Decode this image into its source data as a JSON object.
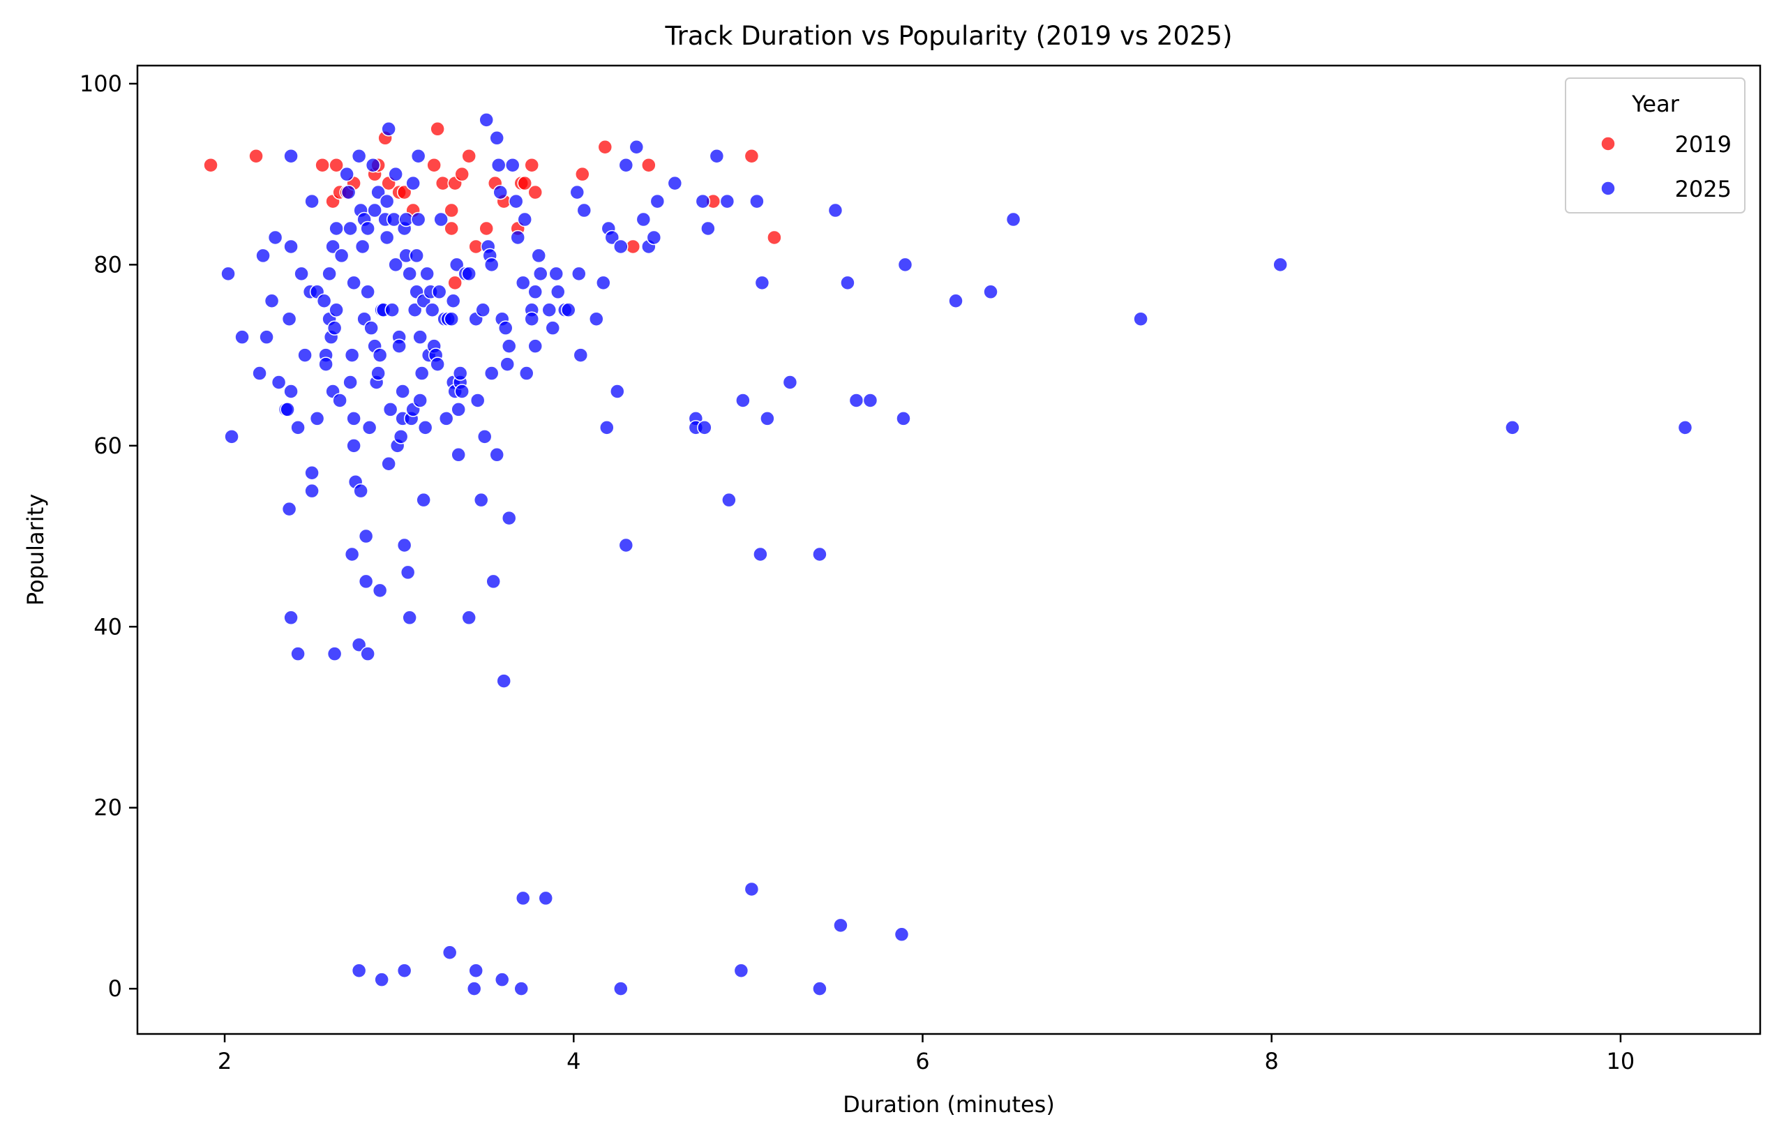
{
  "chart_data": {
    "type": "scatter",
    "title": "Track Duration vs Popularity (2019 vs 2025)",
    "xlabel": "Duration (minutes)",
    "ylabel": "Popularity",
    "xlim": [
      1.5,
      10.8
    ],
    "ylim": [
      -5,
      102
    ],
    "xticks": [
      2,
      4,
      6,
      8,
      10
    ],
    "yticks": [
      0,
      20,
      40,
      60,
      80,
      100
    ],
    "grid": false,
    "legend": {
      "title": "Year",
      "placement": "top-right"
    },
    "series": [
      {
        "name": "2019",
        "color": "#ff0000",
        "points": [
          [
            1.92,
            91
          ],
          [
            2.18,
            92
          ],
          [
            2.56,
            91
          ],
          [
            2.64,
            91
          ],
          [
            2.62,
            87
          ],
          [
            2.66,
            88
          ],
          [
            2.7,
            88
          ],
          [
            2.74,
            89
          ],
          [
            2.86,
            90
          ],
          [
            2.88,
            91
          ],
          [
            2.92,
            94
          ],
          [
            2.94,
            89
          ],
          [
            3.0,
            88
          ],
          [
            3.03,
            88
          ],
          [
            3.08,
            86
          ],
          [
            3.2,
            91
          ],
          [
            3.22,
            95
          ],
          [
            3.25,
            89
          ],
          [
            3.3,
            86
          ],
          [
            3.3,
            84
          ],
          [
            3.32,
            89
          ],
          [
            3.36,
            90
          ],
          [
            3.4,
            92
          ],
          [
            3.44,
            82
          ],
          [
            3.5,
            84
          ],
          [
            3.55,
            89
          ],
          [
            3.6,
            87
          ],
          [
            3.68,
            84
          ],
          [
            3.7,
            89
          ],
          [
            3.72,
            89
          ],
          [
            3.76,
            91
          ],
          [
            3.78,
            88
          ],
          [
            3.32,
            78
          ],
          [
            4.05,
            90
          ],
          [
            4.18,
            93
          ],
          [
            4.34,
            82
          ],
          [
            4.43,
            91
          ],
          [
            4.8,
            87
          ],
          [
            5.02,
            92
          ],
          [
            5.15,
            83
          ]
        ]
      },
      {
        "name": "2025",
        "color": "#0000ff",
        "points": [
          [
            2.02,
            79
          ],
          [
            2.04,
            61
          ],
          [
            2.1,
            72
          ],
          [
            2.2,
            68
          ],
          [
            2.22,
            81
          ],
          [
            2.24,
            72
          ],
          [
            2.27,
            76
          ],
          [
            2.29,
            83
          ],
          [
            2.31,
            67
          ],
          [
            2.35,
            64
          ],
          [
            2.36,
            64
          ],
          [
            2.37,
            74
          ],
          [
            2.38,
            82
          ],
          [
            2.38,
            92
          ],
          [
            2.38,
            66
          ],
          [
            2.42,
            62
          ],
          [
            2.44,
            79
          ],
          [
            2.46,
            70
          ],
          [
            2.49,
            77
          ],
          [
            2.5,
            87
          ],
          [
            2.5,
            55
          ],
          [
            2.5,
            57
          ],
          [
            2.53,
            77
          ],
          [
            2.53,
            63
          ],
          [
            2.57,
            76
          ],
          [
            2.58,
            70
          ],
          [
            2.58,
            69
          ],
          [
            2.6,
            74
          ],
          [
            2.6,
            79
          ],
          [
            2.61,
            72
          ],
          [
            2.62,
            82
          ],
          [
            2.62,
            66
          ],
          [
            2.63,
            73
          ],
          [
            2.64,
            84
          ],
          [
            2.64,
            75
          ],
          [
            2.66,
            65
          ],
          [
            2.67,
            81
          ],
          [
            2.7,
            90
          ],
          [
            2.71,
            88
          ],
          [
            2.72,
            67
          ],
          [
            2.72,
            84
          ],
          [
            2.73,
            70
          ],
          [
            2.74,
            63
          ],
          [
            2.74,
            60
          ],
          [
            2.74,
            78
          ],
          [
            2.75,
            56
          ],
          [
            2.77,
            92
          ],
          [
            2.78,
            86
          ],
          [
            2.78,
            55
          ],
          [
            2.79,
            82
          ],
          [
            2.8,
            74
          ],
          [
            2.8,
            85
          ],
          [
            2.81,
            50
          ],
          [
            2.82,
            77
          ],
          [
            2.82,
            84
          ],
          [
            2.83,
            62
          ],
          [
            2.84,
            73
          ],
          [
            2.85,
            91
          ],
          [
            2.86,
            86
          ],
          [
            2.86,
            71
          ],
          [
            2.87,
            67
          ],
          [
            2.88,
            68
          ],
          [
            2.88,
            88
          ],
          [
            2.89,
            70
          ],
          [
            2.9,
            75
          ],
          [
            2.91,
            75
          ],
          [
            2.92,
            85
          ],
          [
            2.93,
            87
          ],
          [
            2.93,
            83
          ],
          [
            2.94,
            95
          ],
          [
            2.94,
            58
          ],
          [
            2.95,
            64
          ],
          [
            2.96,
            75
          ],
          [
            2.97,
            85
          ],
          [
            2.98,
            90
          ],
          [
            2.98,
            80
          ],
          [
            2.99,
            60
          ],
          [
            3.0,
            72
          ],
          [
            3.0,
            71
          ],
          [
            3.01,
            61
          ],
          [
            3.02,
            63
          ],
          [
            3.02,
            66
          ],
          [
            3.03,
            84
          ],
          [
            3.03,
            49
          ],
          [
            3.04,
            85
          ],
          [
            3.04,
            81
          ],
          [
            3.05,
            46
          ],
          [
            3.06,
            79
          ],
          [
            3.07,
            63
          ],
          [
            3.08,
            64
          ],
          [
            3.08,
            89
          ],
          [
            3.09,
            75
          ],
          [
            3.1,
            77
          ],
          [
            3.1,
            81
          ],
          [
            3.11,
            92
          ],
          [
            3.11,
            85
          ],
          [
            3.12,
            72
          ],
          [
            3.12,
            65
          ],
          [
            3.13,
            68
          ],
          [
            3.14,
            76
          ],
          [
            3.15,
            62
          ],
          [
            3.16,
            79
          ],
          [
            3.17,
            70
          ],
          [
            3.18,
            77
          ],
          [
            3.19,
            75
          ],
          [
            3.2,
            71
          ],
          [
            3.21,
            70
          ],
          [
            3.22,
            69
          ],
          [
            3.23,
            77
          ],
          [
            3.24,
            85
          ],
          [
            3.26,
            74
          ],
          [
            3.27,
            63
          ],
          [
            3.28,
            74
          ],
          [
            3.3,
            74
          ],
          [
            3.31,
            76
          ],
          [
            3.31,
            67
          ],
          [
            3.32,
            66
          ],
          [
            3.33,
            80
          ],
          [
            3.34,
            64
          ],
          [
            3.35,
            67
          ],
          [
            3.35,
            68
          ],
          [
            3.36,
            66
          ],
          [
            3.38,
            79
          ],
          [
            3.4,
            79
          ],
          [
            3.44,
            74
          ],
          [
            3.45,
            65
          ],
          [
            3.47,
            54
          ],
          [
            3.48,
            75
          ],
          [
            3.49,
            61
          ],
          [
            3.5,
            96
          ],
          [
            3.51,
            82
          ],
          [
            3.52,
            81
          ],
          [
            3.53,
            80
          ],
          [
            3.53,
            68
          ],
          [
            3.54,
            45
          ],
          [
            3.56,
            94
          ],
          [
            3.56,
            59
          ],
          [
            3.57,
            91
          ],
          [
            3.58,
            88
          ],
          [
            3.59,
            74
          ],
          [
            3.6,
            34
          ],
          [
            3.61,
            73
          ],
          [
            3.62,
            69
          ],
          [
            3.63,
            71
          ],
          [
            3.63,
            52
          ],
          [
            3.65,
            91
          ],
          [
            3.67,
            87
          ],
          [
            3.68,
            83
          ],
          [
            3.71,
            78
          ],
          [
            3.72,
            85
          ],
          [
            3.73,
            68
          ],
          [
            3.76,
            75
          ],
          [
            3.76,
            74
          ],
          [
            3.78,
            71
          ],
          [
            3.78,
            77
          ],
          [
            3.8,
            81
          ],
          [
            3.81,
            79
          ],
          [
            3.86,
            75
          ],
          [
            3.88,
            73
          ],
          [
            3.9,
            79
          ],
          [
            3.91,
            77
          ],
          [
            3.95,
            75
          ],
          [
            3.97,
            75
          ],
          [
            4.02,
            88
          ],
          [
            4.03,
            79
          ],
          [
            4.04,
            70
          ],
          [
            4.06,
            86
          ],
          [
            4.13,
            74
          ],
          [
            4.17,
            78
          ],
          [
            4.19,
            62
          ],
          [
            4.2,
            84
          ],
          [
            4.22,
            83
          ],
          [
            4.25,
            66
          ],
          [
            4.27,
            82
          ],
          [
            4.3,
            91
          ],
          [
            4.3,
            49
          ],
          [
            4.36,
            93
          ],
          [
            4.4,
            85
          ],
          [
            4.43,
            82
          ],
          [
            4.46,
            83
          ],
          [
            4.48,
            87
          ],
          [
            4.58,
            89
          ],
          [
            4.7,
            63
          ],
          [
            4.7,
            62
          ],
          [
            4.75,
            62
          ],
          [
            4.74,
            87
          ],
          [
            4.77,
            84
          ],
          [
            4.82,
            92
          ],
          [
            4.88,
            87
          ],
          [
            4.89,
            54
          ],
          [
            4.97,
            65
          ],
          [
            5.05,
            87
          ],
          [
            5.07,
            48
          ],
          [
            5.08,
            78
          ],
          [
            5.11,
            63
          ],
          [
            5.24,
            67
          ],
          [
            5.41,
            48
          ],
          [
            5.5,
            86
          ],
          [
            5.57,
            78
          ],
          [
            5.62,
            65
          ],
          [
            5.7,
            65
          ],
          [
            5.89,
            63
          ],
          [
            5.9,
            80
          ],
          [
            6.19,
            76
          ],
          [
            6.39,
            77
          ],
          [
            6.52,
            85
          ],
          [
            7.25,
            74
          ],
          [
            8.05,
            80
          ],
          [
            9.38,
            62
          ],
          [
            10.37,
            62
          ],
          [
            2.37,
            53
          ],
          [
            2.38,
            41
          ],
          [
            2.42,
            37
          ],
          [
            2.63,
            37
          ],
          [
            2.73,
            48
          ],
          [
            2.77,
            38
          ],
          [
            2.81,
            45
          ],
          [
            2.82,
            37
          ],
          [
            2.89,
            44
          ],
          [
            3.06,
            41
          ],
          [
            3.14,
            54
          ],
          [
            3.4,
            41
          ],
          [
            3.34,
            59
          ],
          [
            2.77,
            2
          ],
          [
            2.9,
            1
          ],
          [
            3.03,
            2
          ],
          [
            3.29,
            4
          ],
          [
            3.43,
            0
          ],
          [
            3.44,
            2
          ],
          [
            3.59,
            1
          ],
          [
            3.7,
            0
          ],
          [
            3.71,
            10
          ],
          [
            3.84,
            10
          ],
          [
            4.27,
            0
          ],
          [
            4.96,
            2
          ],
          [
            5.02,
            11
          ],
          [
            5.41,
            0
          ],
          [
            5.53,
            7
          ],
          [
            5.88,
            6
          ]
        ]
      }
    ]
  }
}
